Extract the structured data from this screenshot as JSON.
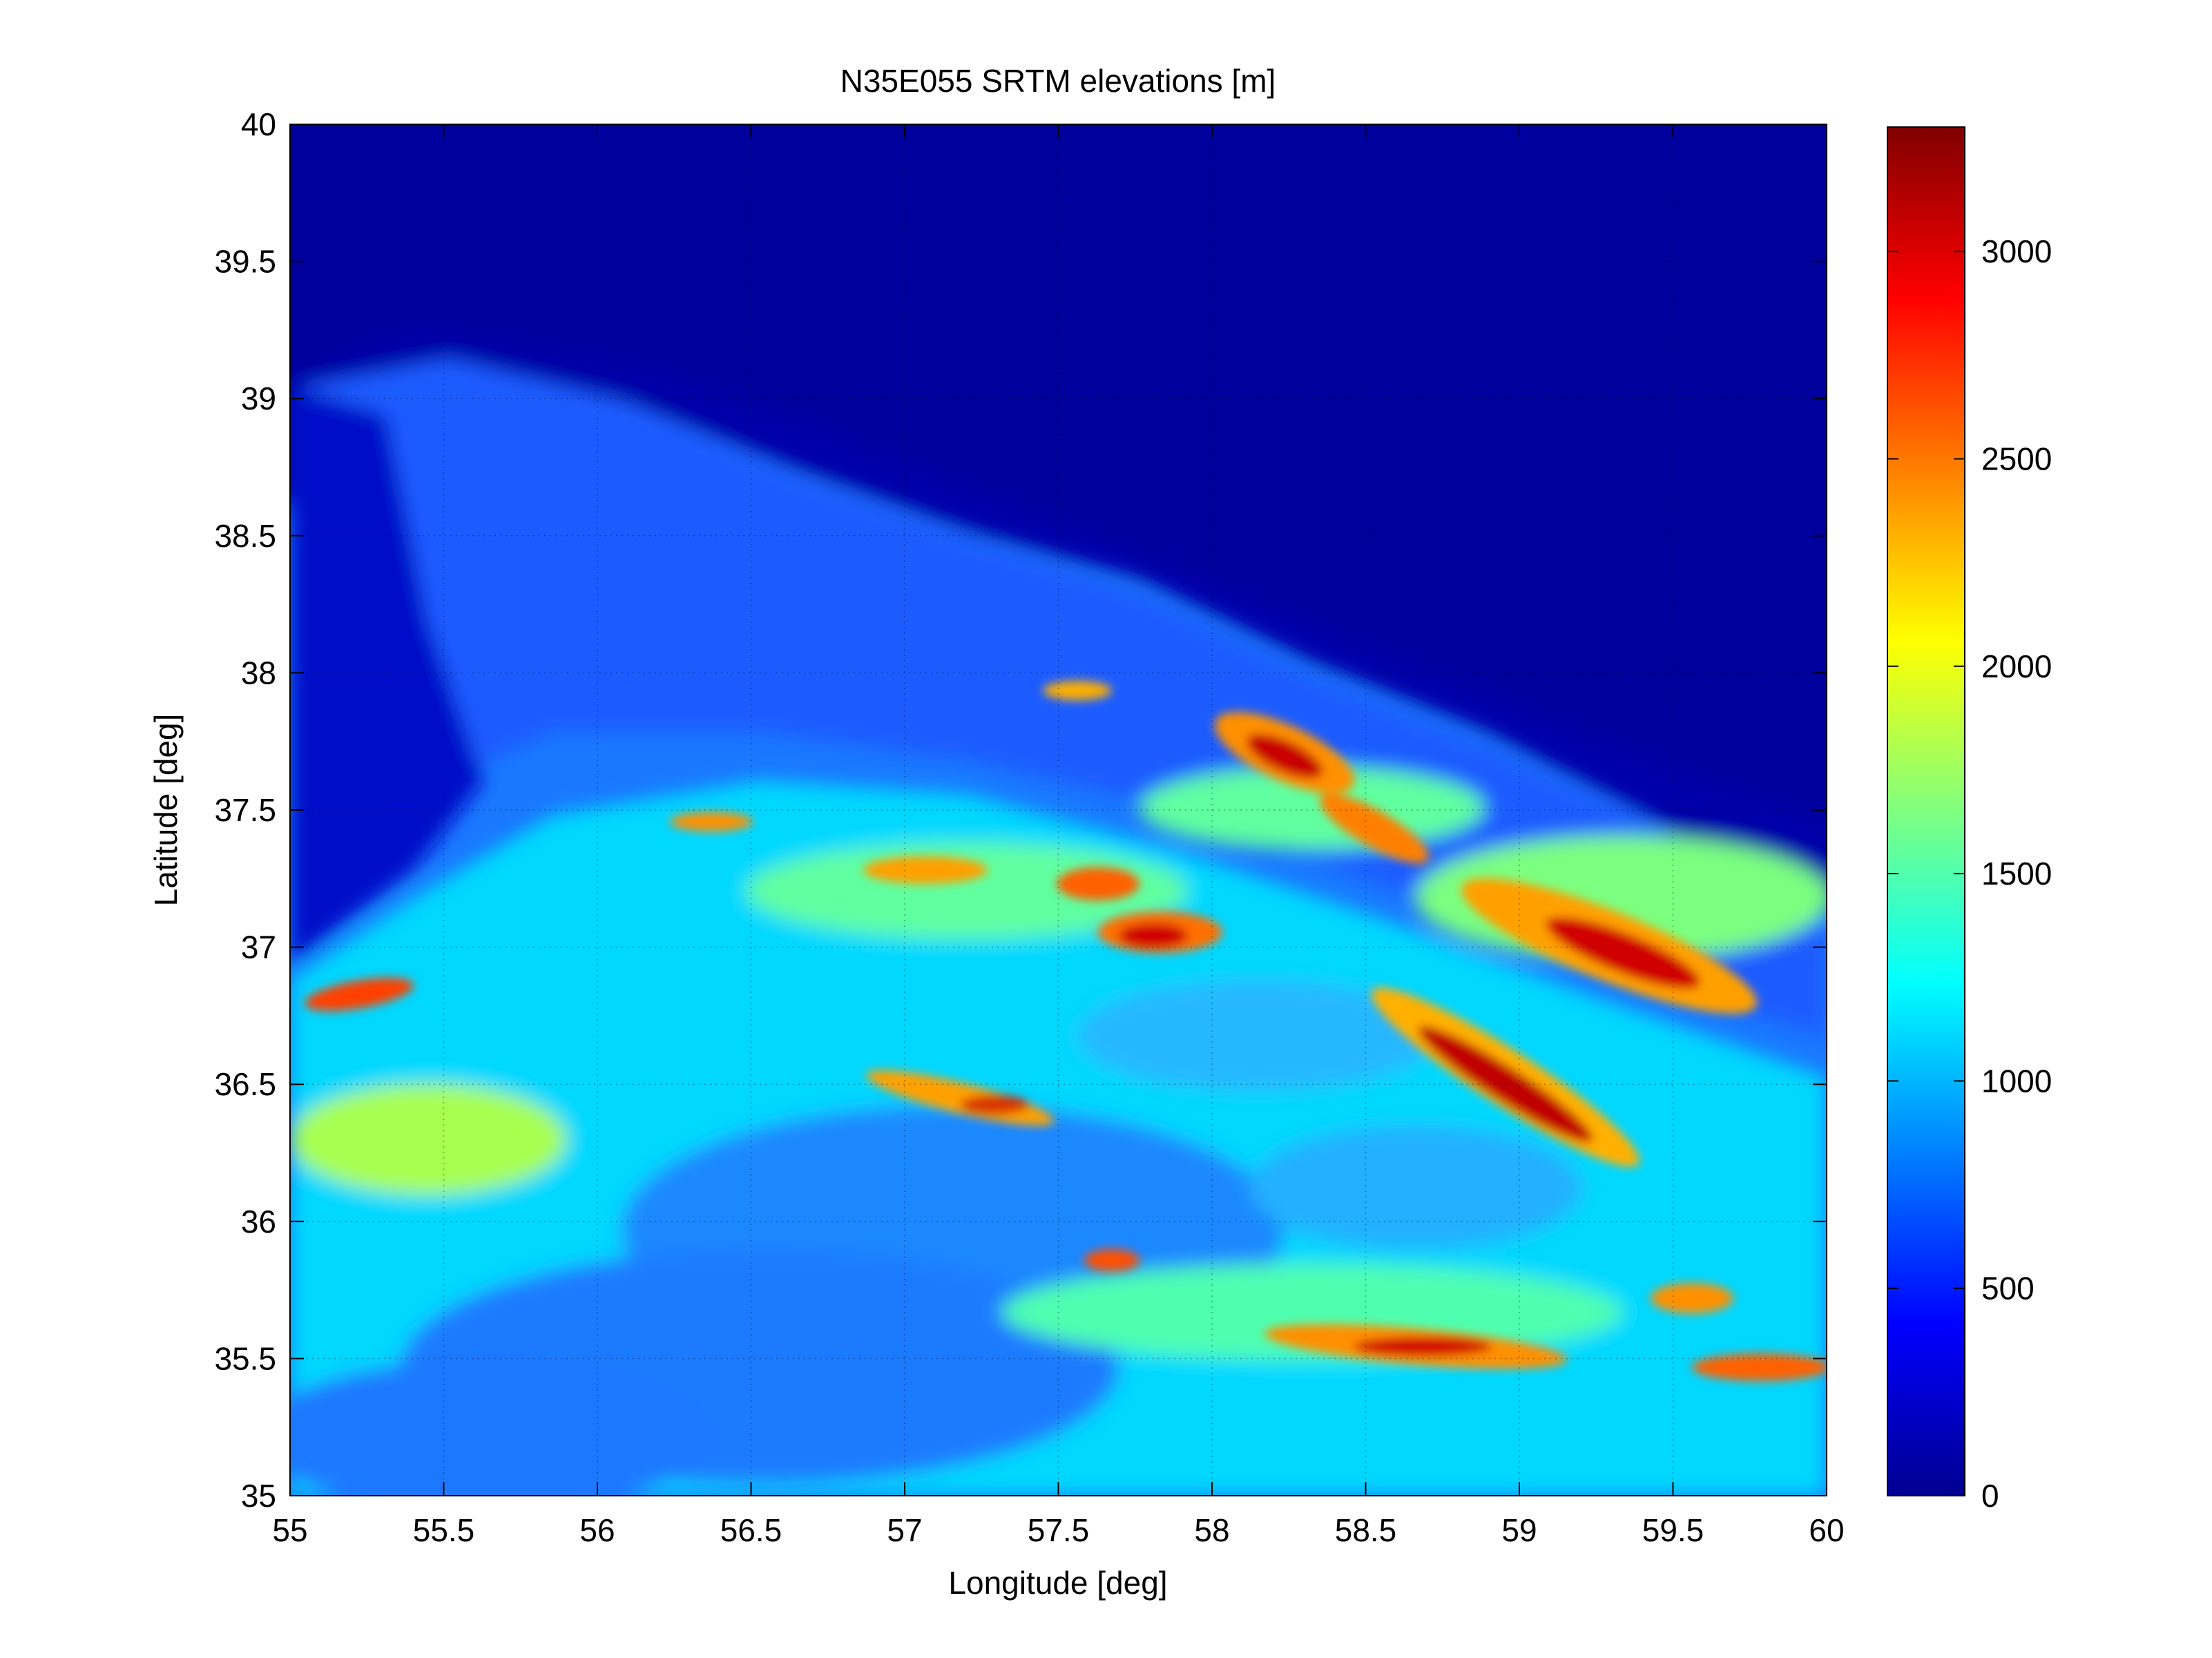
{
  "chart_data": {
    "type": "heatmap",
    "title": "N35E055 SRTM elevations [m]",
    "xlabel": "Longitude [deg]",
    "ylabel": "Latitude [deg]",
    "xlim": [
      55,
      60
    ],
    "ylim": [
      35,
      40
    ],
    "x_ticks": [
      "55",
      "55.5",
      "56",
      "56.5",
      "57",
      "57.5",
      "58",
      "58.5",
      "59",
      "59.5",
      "60"
    ],
    "y_ticks": [
      "35",
      "35.5",
      "36",
      "36.5",
      "37",
      "37.5",
      "38",
      "38.5",
      "39",
      "39.5",
      "40"
    ],
    "grid": true,
    "colormap": "jet",
    "colorbar": {
      "range": [
        0,
        3300
      ],
      "ticks": [
        "0",
        "500",
        "1000",
        "1500",
        "2000",
        "2500",
        "3000"
      ],
      "placement": "right"
    },
    "terrain_features": [
      {
        "lon": 55.0,
        "lat": 40.0,
        "elevation": -20
      },
      {
        "lon": 58.2,
        "lat": 37.75,
        "elevation": 2900
      },
      {
        "lon": 59.3,
        "lat": 37.0,
        "elevation": 3000
      },
      {
        "lon": 58.8,
        "lat": 36.45,
        "elevation": 3100
      },
      {
        "lon": 57.7,
        "lat": 37.05,
        "elevation": 2900
      },
      {
        "lon": 57.3,
        "lat": 36.4,
        "elevation": 2700
      },
      {
        "lon": 58.9,
        "lat": 35.5,
        "elevation": 2900
      },
      {
        "lon": 57.2,
        "lat": 37.3,
        "elevation": 2600
      }
    ]
  }
}
